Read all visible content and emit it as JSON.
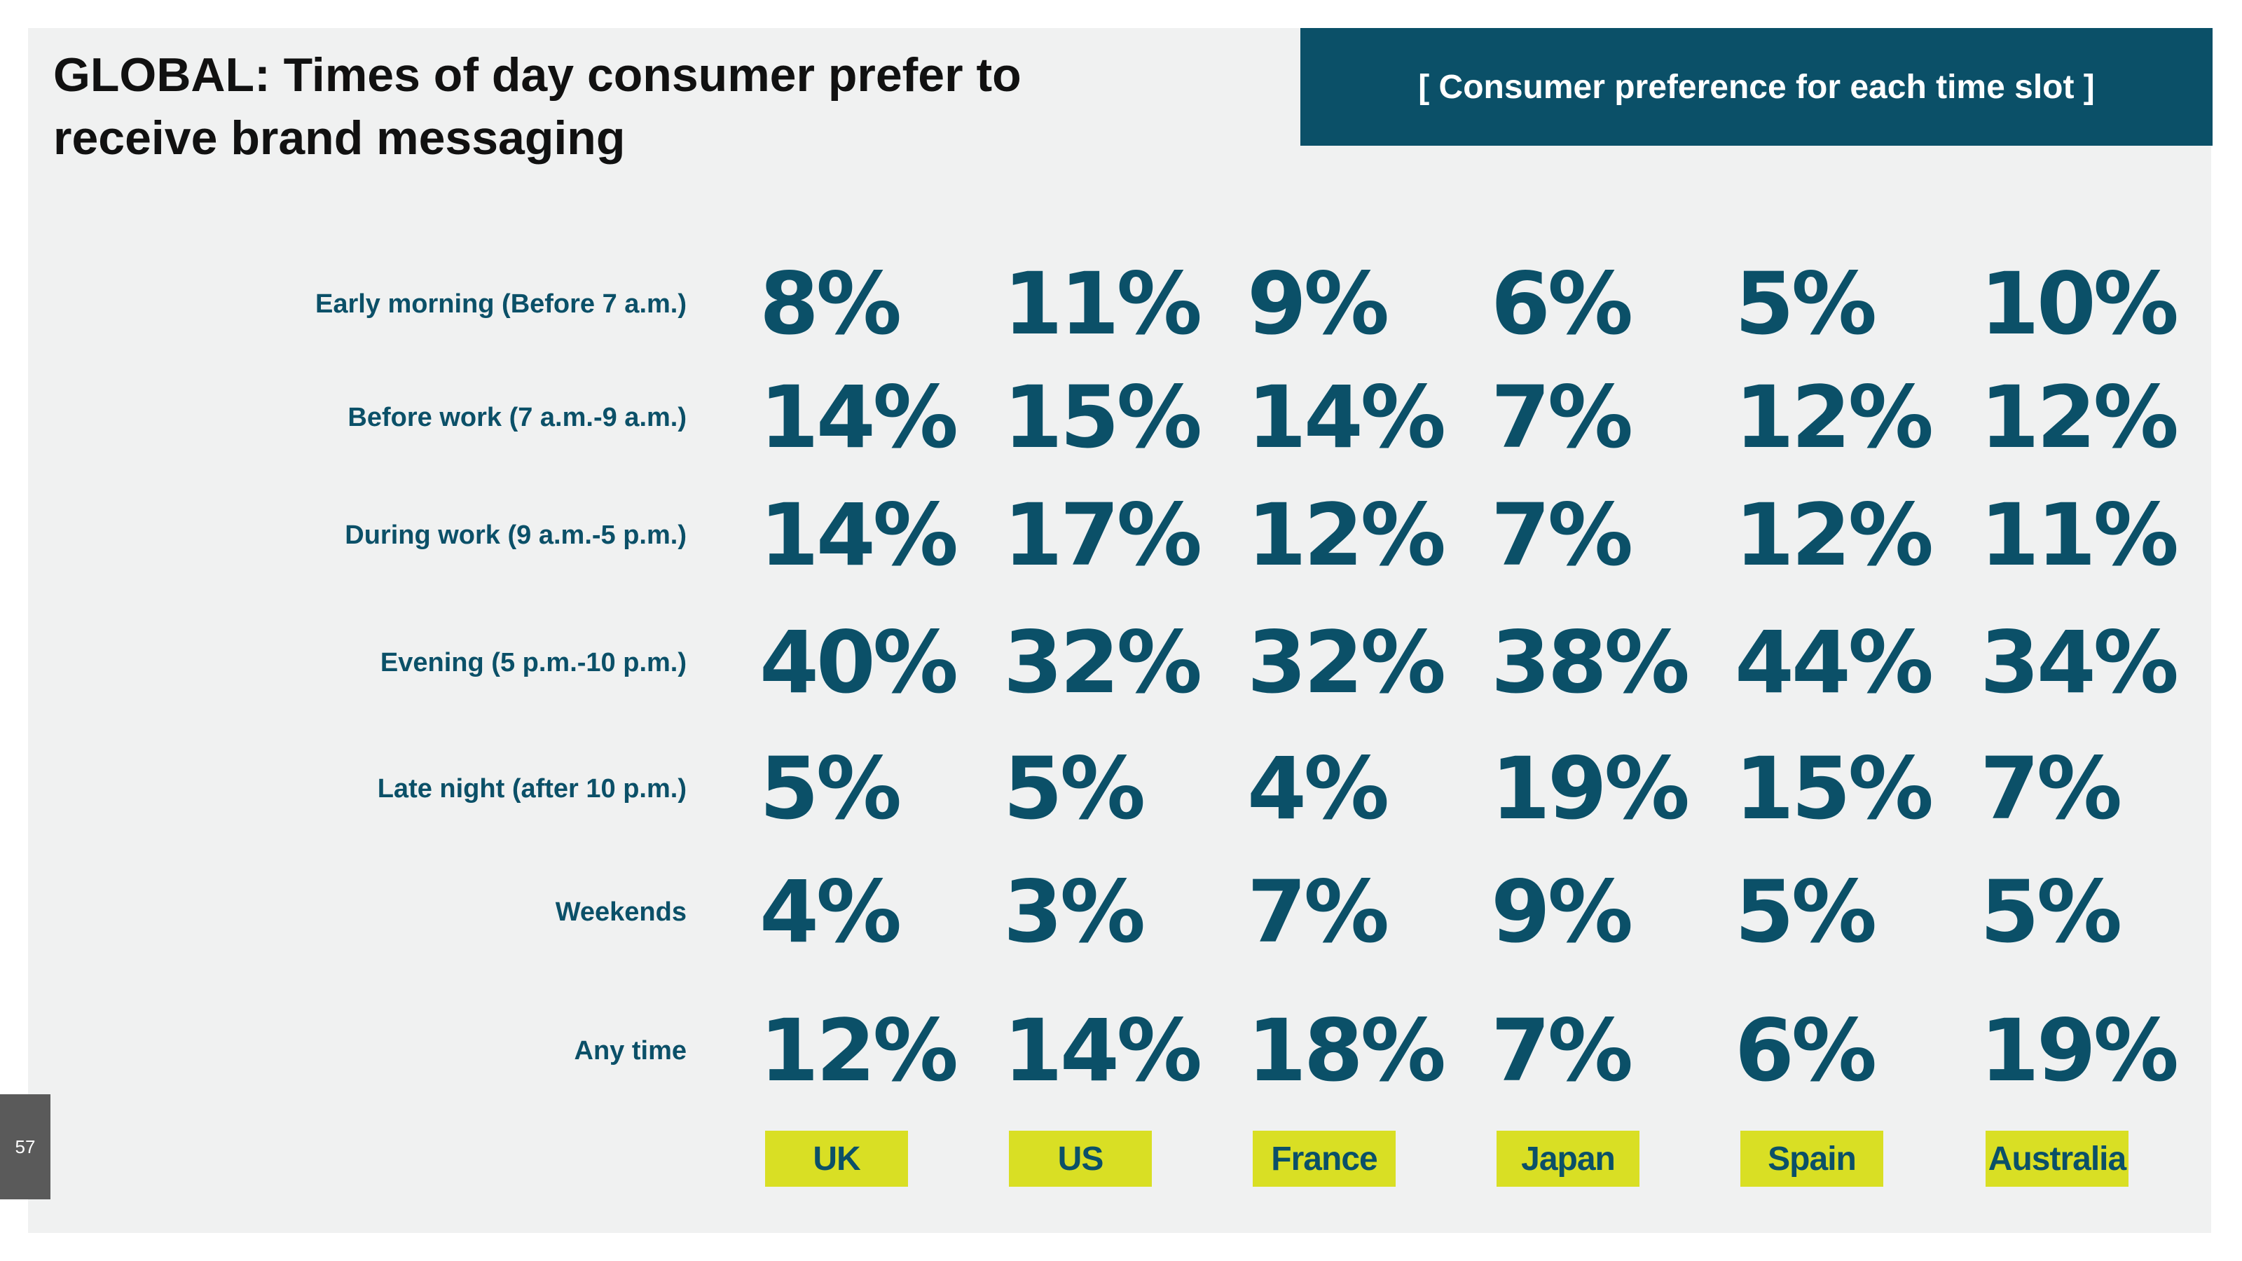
{
  "slide": {
    "title": "GLOBAL: Times of day consumer prefer to receive brand messaging",
    "banner": "[ Consumer preference for each time slot ]",
    "page_number": "57"
  },
  "colors": {
    "accent": "#0b5068",
    "highlight": "#d9df24",
    "background": "#f0f1f1"
  },
  "chart_data": {
    "type": "table",
    "title": "GLOBAL: Times of day consumer prefer to receive brand messaging",
    "subtitle": "[ Consumer preference for each time slot ]",
    "rows": [
      "Early morning (Before 7 a.m.)",
      "Before work (7 a.m.-9 a.m.)",
      "During work (9 a.m.-5 p.m.)",
      "Evening (5 p.m.-10 p.m.)",
      "Late night (after 10 p.m.)",
      "Weekends",
      "Any time"
    ],
    "columns": [
      "UK",
      "US",
      "France",
      "Japan",
      "Spain",
      "Australia"
    ],
    "values": [
      [
        "8%",
        "11%",
        "9%",
        "6%",
        "5%",
        "10%"
      ],
      [
        "14%",
        "15%",
        "14%",
        "7%",
        "12%",
        "12%"
      ],
      [
        "14%",
        "17%",
        "12%",
        "7%",
        "12%",
        "11%"
      ],
      [
        "40%",
        "32%",
        "32%",
        "38%",
        "44%",
        "34%"
      ],
      [
        "5%",
        "5%",
        "4%",
        "19%",
        "15%",
        "7%"
      ],
      [
        "4%",
        "3%",
        "7%",
        "9%",
        "5%",
        "5%"
      ],
      [
        "12%",
        "14%",
        "18%",
        "7%",
        "6%",
        "19%"
      ]
    ],
    "unit": "%"
  }
}
